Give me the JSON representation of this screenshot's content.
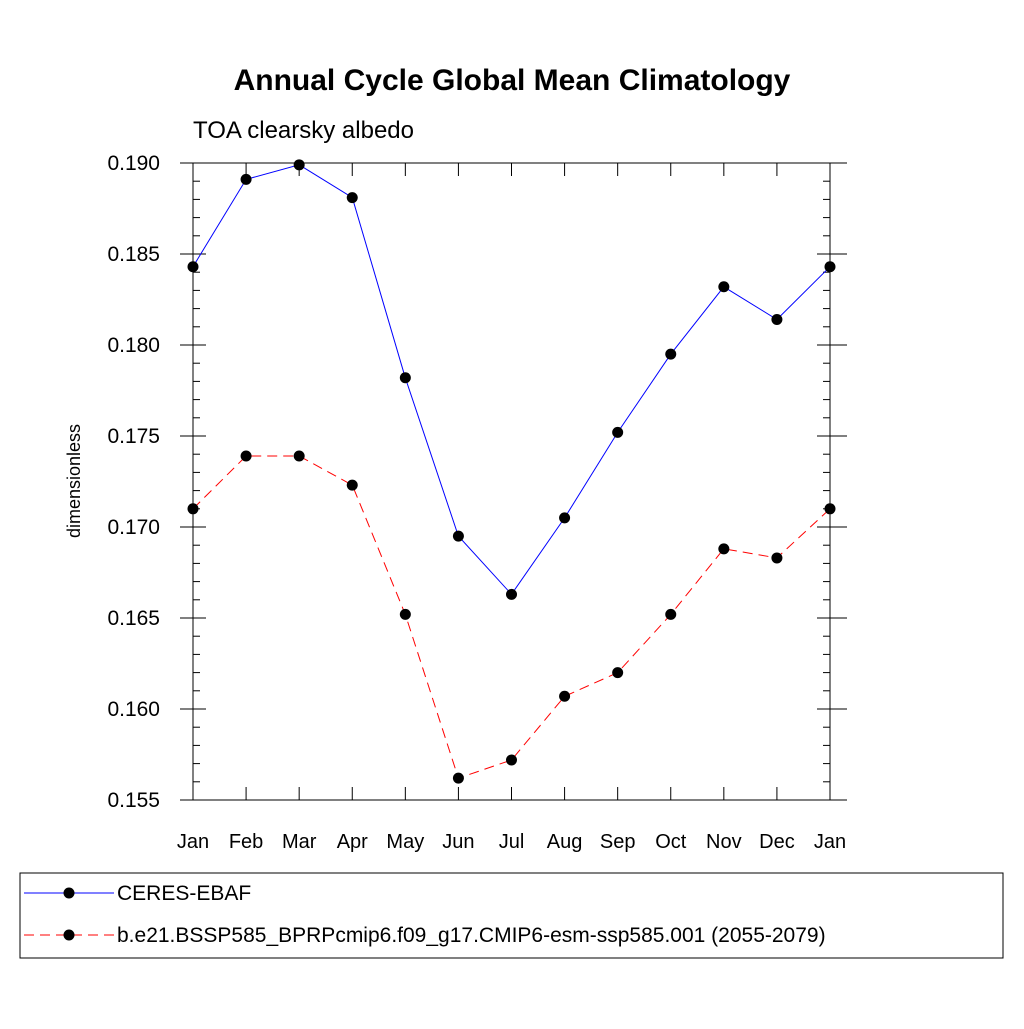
{
  "chart_data": {
    "type": "line",
    "title": "Annual Cycle Global Mean Climatology",
    "subtitle": "TOA clearsky albedo",
    "ylabel": "dimensionless",
    "xlabel": "",
    "categories": [
      "Jan",
      "Feb",
      "Mar",
      "Apr",
      "May",
      "Jun",
      "Jul",
      "Aug",
      "Sep",
      "Oct",
      "Nov",
      "Dec",
      "Jan"
    ],
    "ylim": [
      0.155,
      0.19
    ],
    "yticks": [
      "0.155",
      "0.160",
      "0.165",
      "0.170",
      "0.175",
      "0.180",
      "0.185",
      "0.190"
    ],
    "series": [
      {
        "name": "CERES-EBAF",
        "color": "#0000ff",
        "dash": "solid",
        "values": [
          0.1843,
          0.1891,
          0.1899,
          0.1881,
          0.1782,
          0.1695,
          0.1663,
          0.1705,
          0.1752,
          0.1795,
          0.1832,
          0.1814,
          0.1843
        ]
      },
      {
        "name": "b.e21.BSSP585_BPRPcmip6.f09_g17.CMIP6-esm-ssp585.001 (2055-2079)",
        "color": "#ff0000",
        "dash": "dashed",
        "values": [
          0.171,
          0.1739,
          0.1739,
          0.1723,
          0.1652,
          0.1562,
          0.1572,
          0.1607,
          0.162,
          0.1652,
          0.1688,
          0.1683,
          0.171
        ]
      }
    ],
    "legend_position": "bottom"
  }
}
